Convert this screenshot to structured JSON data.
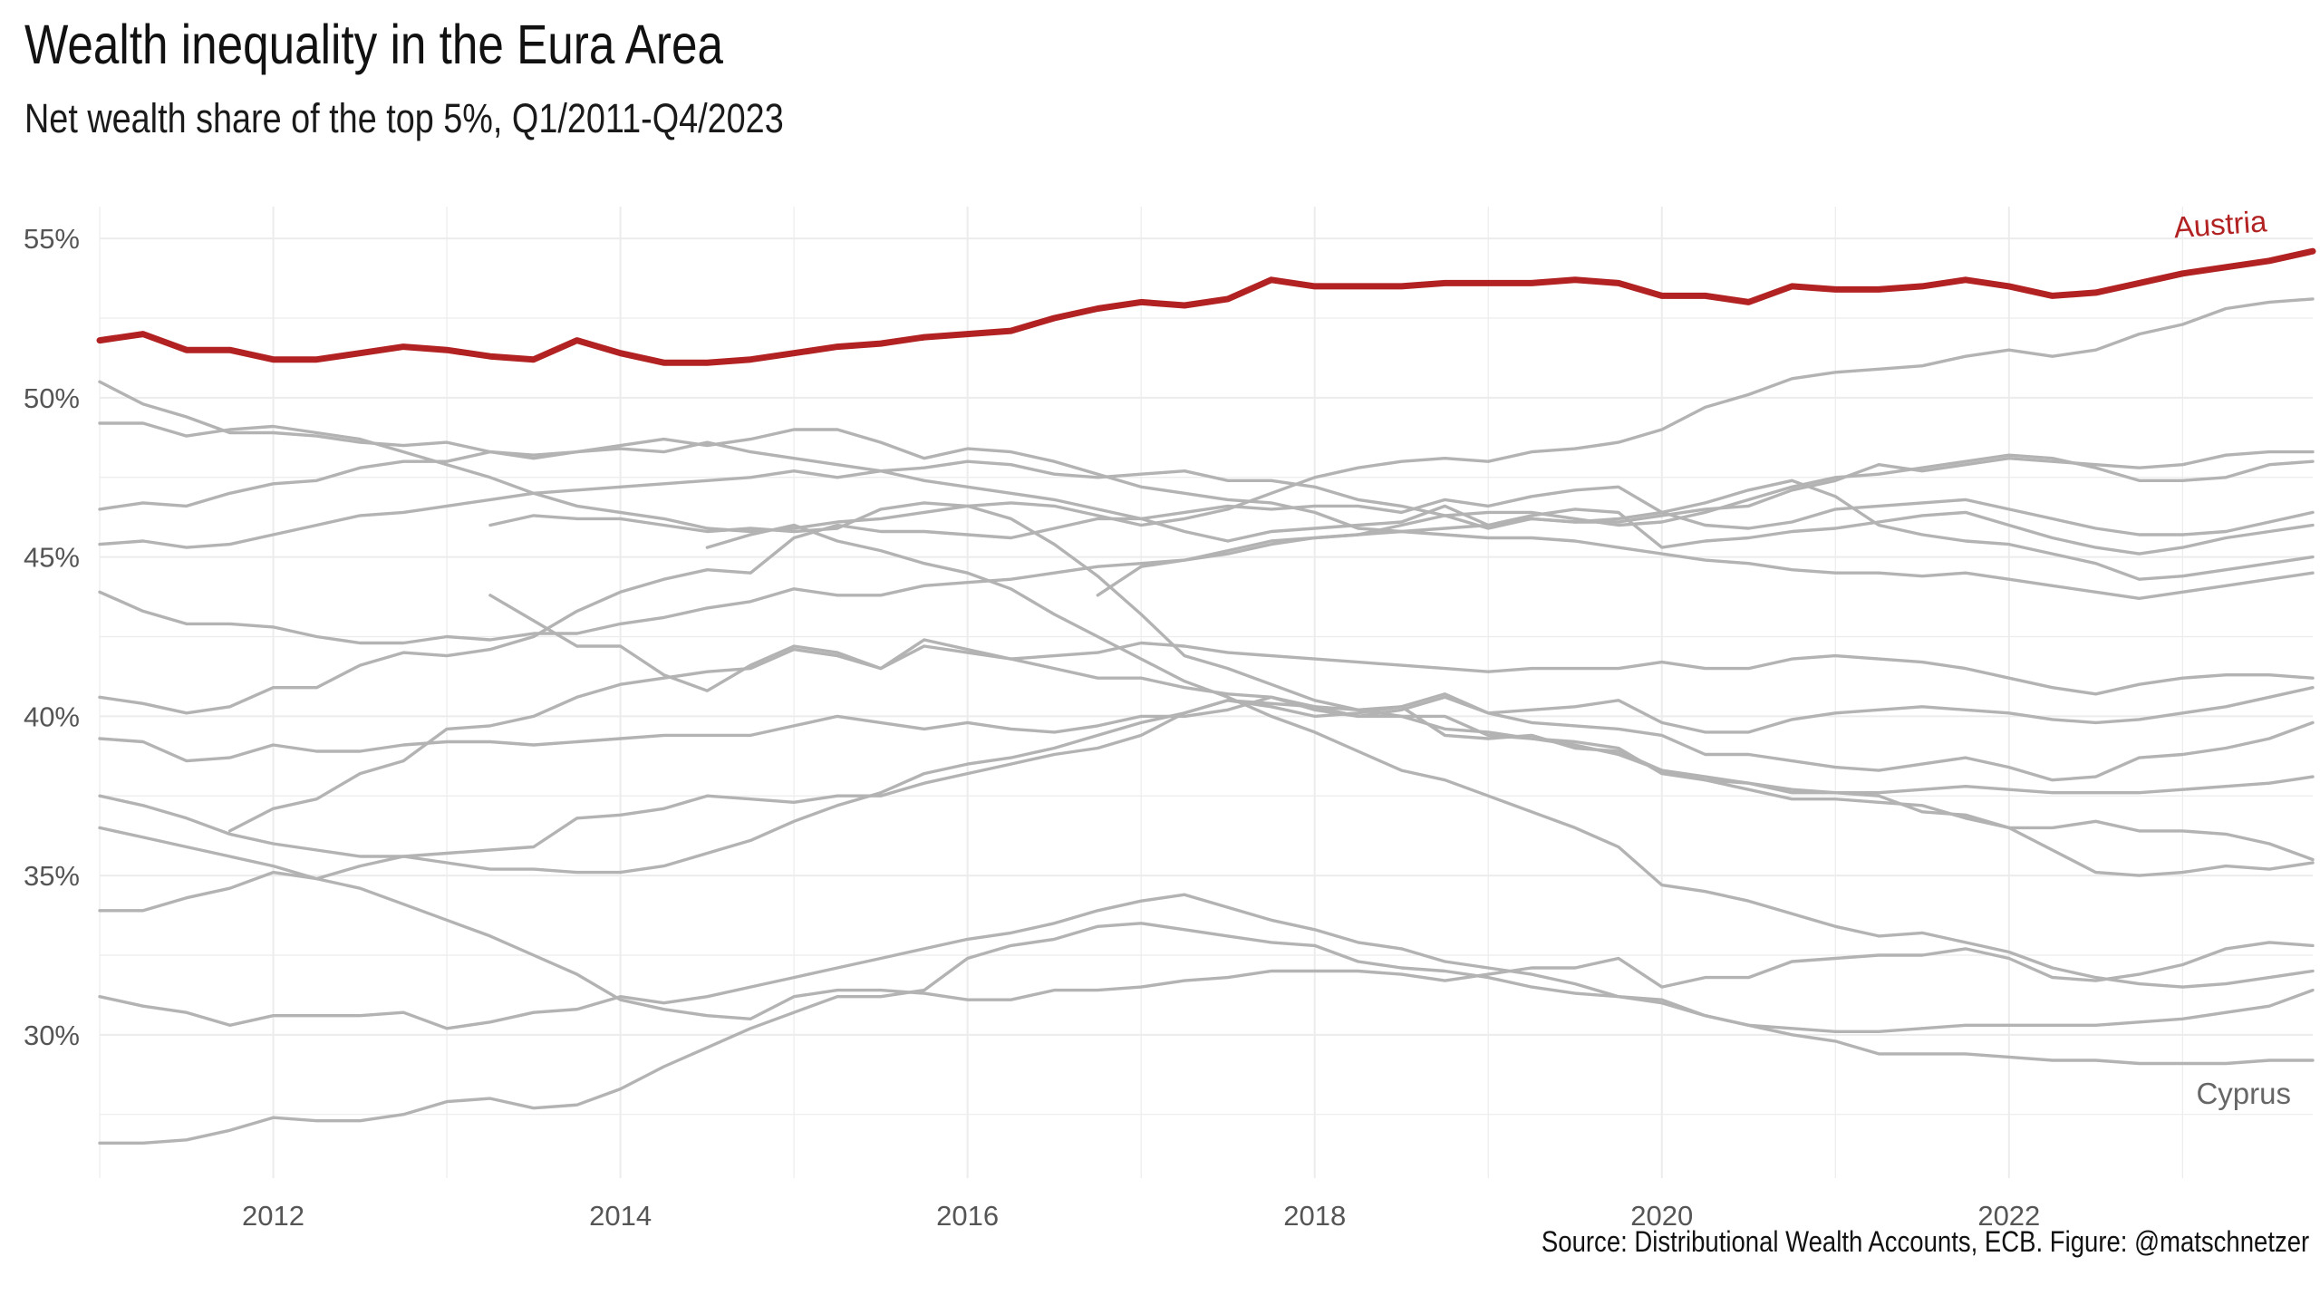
{
  "title": "Wealth inequality in the Eura Area",
  "subtitle": "Net wealth share of the top 5%, Q1/2011-Q4/2023",
  "caption": "Source: Distributional Wealth Accounts, ECB. Figure: @matschnetzer",
  "colors": {
    "highlight": "#b22222",
    "other": "#b3b3b3",
    "grid": "#ececec",
    "label_other": "#666666"
  },
  "chart_data": {
    "type": "line",
    "title": "Wealth inequality in the Eura Area",
    "subtitle": "Net wealth share of the top 5%, Q1/2011-Q4/2023",
    "xlabel": "",
    "ylabel": "",
    "xlim": [
      2011.0,
      2023.75
    ],
    "ylim": [
      25.5,
      56.0
    ],
    "x_ticks": [
      2012,
      2014,
      2016,
      2018,
      2020,
      2022
    ],
    "y_ticks": [
      30,
      35,
      40,
      45,
      50,
      55
    ],
    "y_tick_labels": [
      "30%",
      "35%",
      "40%",
      "45%",
      "50%",
      "55%"
    ],
    "grid": true,
    "legend": "none",
    "labels": {
      "highlight": "Austria",
      "lowest": "Cyprus"
    },
    "series": [
      {
        "name": "Austria",
        "highlight": true,
        "x_start": 2011.0,
        "values": [
          51.8,
          52.0,
          51.5,
          51.5,
          51.2,
          51.2,
          51.4,
          51.6,
          51.5,
          51.3,
          51.2,
          51.8,
          51.4,
          51.1,
          51.1,
          51.2,
          51.4,
          51.6,
          51.7,
          51.9,
          52.0,
          52.1,
          52.5,
          52.8,
          53.0,
          52.9,
          53.1,
          53.7,
          53.5,
          53.5,
          53.5,
          53.6,
          53.6,
          53.6,
          53.7,
          53.6,
          53.2,
          53.2,
          53.0,
          53.5,
          53.4,
          53.4,
          53.5,
          53.7,
          53.5,
          53.2,
          53.3,
          53.6,
          53.9,
          54.1,
          54.3,
          54.6
        ]
      },
      {
        "name": "Cyprus",
        "highlight": false,
        "x_start": 2011.0,
        "values": [
          26.6,
          26.6,
          26.7,
          27.0,
          27.4,
          27.3,
          27.3,
          27.5,
          27.9,
          28.0,
          27.7,
          27.8,
          28.3,
          29.0,
          29.6,
          30.2,
          30.7,
          31.2,
          31.2,
          31.4,
          32.4,
          32.8,
          33.0,
          33.4,
          33.5,
          33.3,
          33.1,
          32.9,
          32.8,
          32.3,
          32.1,
          32.0,
          31.8,
          31.5,
          31.3,
          31.2,
          31.1,
          30.6,
          30.3,
          30.0,
          29.8,
          29.4,
          29.4,
          29.4,
          29.3,
          29.2,
          29.2,
          29.1,
          29.1,
          29.1,
          29.2,
          29.2
        ]
      },
      {
        "name": "",
        "highlight": false,
        "x_start": 2011.0,
        "values": [
          50.5,
          49.8,
          49.4,
          48.9,
          48.9,
          48.8,
          48.6,
          48.5,
          48.6,
          48.3,
          48.1,
          48.3,
          48.5,
          48.7,
          48.5,
          48.7,
          49.0,
          49.0,
          48.6,
          48.1,
          48.4,
          48.3,
          48.0,
          47.6,
          47.2,
          47.0,
          46.8,
          46.7,
          46.4,
          45.9,
          45.8,
          45.7,
          45.6,
          45.6,
          45.5,
          45.3,
          45.1,
          44.9,
          44.8,
          44.6,
          44.5,
          44.5,
          44.4,
          44.5,
          44.3,
          44.1,
          43.9,
          43.7,
          43.9,
          44.1,
          44.3,
          44.5
        ]
      },
      {
        "name": "",
        "highlight": false,
        "x_start": 2011.0,
        "values": [
          49.2,
          49.2,
          48.8,
          49.0,
          49.1,
          48.9,
          48.7,
          48.3,
          47.9,
          47.5,
          47.0,
          46.6,
          46.4,
          46.2,
          45.9,
          45.8,
          45.9,
          46.1,
          46.2,
          46.4,
          46.6,
          46.7,
          46.6,
          46.3,
          46.0,
          46.2,
          46.5,
          47.0,
          47.5,
          47.8,
          48.0,
          48.1,
          48.0,
          48.3,
          48.4,
          48.6,
          49.0,
          49.7,
          50.1,
          50.6,
          50.8,
          50.9,
          51.0,
          51.3,
          51.5,
          51.3,
          51.5,
          52.0,
          52.3,
          52.8,
          53.0,
          53.1
        ]
      },
      {
        "name": "",
        "highlight": false,
        "x_start": 2011.0,
        "values": [
          46.5,
          46.7,
          46.6,
          47.0,
          47.3,
          47.4,
          47.8,
          48.0,
          48.0,
          48.3,
          48.2,
          48.3,
          48.4,
          48.3,
          48.6,
          48.3,
          48.1,
          47.9,
          47.7,
          47.4,
          47.2,
          47.0,
          46.8,
          46.5,
          46.2,
          45.8,
          45.5,
          45.8,
          45.9,
          46.0,
          46.1,
          46.6,
          46.0,
          46.2,
          46.1,
          46.1,
          46.3,
          46.5,
          46.6,
          47.1,
          47.4,
          47.9,
          47.7,
          47.9,
          48.1,
          48.0,
          47.9,
          47.8,
          47.9,
          48.2,
          48.3,
          48.3
        ]
      },
      {
        "name": "",
        "highlight": false,
        "x_start": 2011.0,
        "values": [
          45.4,
          45.5,
          45.3,
          45.4,
          45.7,
          46.0,
          46.3,
          46.4,
          46.6,
          46.8,
          47.0,
          47.1,
          47.2,
          47.3,
          47.4,
          47.5,
          47.7,
          47.5,
          47.7,
          47.8,
          48.0,
          47.9,
          47.6,
          47.5,
          47.6,
          47.7,
          47.4,
          47.4,
          47.2,
          46.8,
          46.6,
          46.3,
          46.4,
          46.4,
          46.2,
          46.0,
          46.1,
          46.4,
          46.8,
          47.2,
          47.5,
          47.6,
          47.8,
          48.0,
          48.2,
          48.1,
          47.8,
          47.4,
          47.4,
          47.5,
          47.9,
          48.0
        ]
      },
      {
        "name": "",
        "highlight": false,
        "x_start": 2011.0,
        "values": [
          43.9,
          43.3,
          42.9,
          42.9,
          42.8,
          42.5,
          42.3,
          42.3,
          42.5,
          42.4,
          42.6,
          42.6,
          42.9,
          43.1,
          43.4,
          43.6,
          44.0,
          43.8,
          43.8,
          44.1,
          44.2,
          44.3,
          44.5,
          44.7,
          44.8,
          44.9,
          45.1,
          45.4,
          45.6,
          45.7,
          45.8,
          45.9,
          46.0,
          46.3,
          46.5,
          46.4,
          45.3,
          45.5,
          45.6,
          45.8,
          45.9,
          46.1,
          46.3,
          46.4,
          46.0,
          45.6,
          45.3,
          45.1,
          45.3,
          45.6,
          45.8,
          46.0
        ]
      },
      {
        "name": "",
        "highlight": false,
        "x_start": 2011.0,
        "values": [
          40.6,
          40.4,
          40.1,
          40.3,
          40.9,
          40.9,
          41.6,
          42.0,
          41.9,
          42.1,
          42.5,
          43.3,
          43.9,
          44.3,
          44.6,
          44.5,
          45.6,
          46.0,
          45.8,
          45.8,
          45.7,
          45.6,
          45.9,
          46.2,
          46.2,
          46.4,
          46.6,
          46.5,
          46.6,
          46.6,
          46.4,
          46.8,
          46.6,
          46.9,
          47.1,
          47.2,
          46.4,
          46.0,
          45.9,
          46.1,
          46.5,
          46.6,
          46.7,
          46.8,
          46.5,
          46.2,
          45.9,
          45.7,
          45.7,
          45.8,
          46.1,
          46.4
        ]
      },
      {
        "name": "",
        "highlight": false,
        "x_start": 2011.0,
        "values": [
          39.3,
          39.2,
          38.6,
          38.7,
          39.1,
          38.9,
          38.9,
          39.1,
          39.2,
          39.2,
          39.1,
          39.2,
          39.3,
          39.4,
          39.4,
          39.4,
          39.7,
          40.0,
          39.8,
          39.6,
          39.8,
          39.6,
          39.5,
          39.7,
          40.0,
          40.0,
          40.2,
          40.6,
          40.3,
          40.0,
          40.2,
          40.6,
          40.1,
          40.2,
          40.3,
          40.5,
          39.8,
          39.5,
          39.5,
          39.9,
          40.1,
          40.2,
          40.3,
          40.2,
          40.1,
          39.9,
          39.8,
          39.9,
          40.1,
          40.3,
          40.6,
          40.9
        ]
      },
      {
        "name": "",
        "highlight": false,
        "x_start": 2011.0,
        "values": [
          37.5,
          37.2,
          36.8,
          36.3,
          36.0,
          35.8,
          35.6,
          35.6,
          35.4,
          35.2,
          35.2,
          35.1,
          35.1,
          35.3,
          35.7,
          36.1,
          36.7,
          37.2,
          37.6,
          38.2,
          38.5,
          38.7,
          39.0,
          39.4,
          39.8,
          40.1,
          40.5,
          40.4,
          40.3,
          40.2,
          40.0,
          39.6,
          39.5,
          39.3,
          39.1,
          38.8,
          38.3,
          38.1,
          37.9,
          37.7,
          37.6,
          37.6,
          37.7,
          37.8,
          37.7,
          37.6,
          37.6,
          37.6,
          37.7,
          37.8,
          37.9,
          38.1
        ]
      },
      {
        "name": "",
        "highlight": false,
        "x_start": 2011.0,
        "values": [
          36.5,
          36.2,
          35.9,
          35.6,
          35.3,
          34.9,
          34.6,
          34.1,
          33.6,
          33.1,
          32.5,
          31.9,
          31.1,
          30.8,
          30.6,
          30.5,
          31.2,
          31.4,
          31.4,
          31.3,
          31.1,
          31.1,
          31.4,
          31.4,
          31.5,
          31.7,
          31.8,
          32.0,
          32.0,
          32.0,
          31.9,
          31.7,
          31.9,
          32.1,
          32.1,
          32.4,
          31.5,
          31.8,
          31.8,
          32.3,
          32.4,
          32.5,
          32.5,
          32.7,
          32.4,
          31.8,
          31.7,
          31.9,
          32.2,
          32.7,
          32.9,
          32.8
        ]
      },
      {
        "name": "",
        "highlight": false,
        "x_start": 2011.0,
        "values": [
          31.2,
          30.9,
          30.7,
          30.3,
          30.6,
          30.6,
          30.6,
          30.7,
          30.2,
          30.4,
          30.7,
          30.8,
          31.2,
          31.0,
          31.2,
          31.5,
          31.8,
          32.1,
          32.4,
          32.7,
          33.0,
          33.2,
          33.5,
          33.9,
          34.2,
          34.4,
          34.0,
          33.6,
          33.3,
          32.9,
          32.7,
          32.3,
          32.1,
          31.9,
          31.6,
          31.2,
          31.0,
          30.6,
          30.3,
          30.2,
          30.1,
          30.1,
          30.2,
          30.3,
          30.3,
          30.3,
          30.3,
          30.4,
          30.5,
          30.7,
          30.9,
          31.4
        ]
      },
      {
        "name": "",
        "highlight": false,
        "x_start": 2011.0,
        "values": [
          33.9,
          33.9,
          34.3,
          34.6,
          35.1,
          34.9,
          35.3,
          35.6,
          35.7,
          35.8,
          35.9,
          36.8,
          36.9,
          37.1,
          37.5,
          37.4,
          37.3,
          37.5,
          37.5,
          37.9,
          38.2,
          38.5,
          38.8,
          39.0,
          39.4,
          40.1,
          40.5,
          40.3,
          40.0,
          40.1,
          40.3,
          40.7,
          40.1,
          39.8,
          39.7,
          39.6,
          39.4,
          38.8,
          38.8,
          38.6,
          38.4,
          38.3,
          38.5,
          38.7,
          38.4,
          38.0,
          38.1,
          38.7,
          38.8,
          39.0,
          39.3,
          39.8
        ]
      },
      {
        "name": "",
        "highlight": false,
        "x_start": 2011.25,
        "values": [
          null,
          null,
          null,
          36.4,
          37.1,
          37.4,
          38.2,
          38.6,
          39.6,
          39.7,
          40.0,
          40.6,
          41.0,
          41.2,
          41.4,
          41.5,
          42.1,
          41.9,
          41.5,
          42.2,
          42.0,
          41.8,
          41.9,
          42.0,
          42.3,
          42.2,
          42.0,
          41.9,
          41.8,
          41.7,
          41.6,
          41.5,
          41.4,
          41.5,
          41.5,
          41.5,
          41.7,
          41.5,
          41.5,
          41.8,
          41.9,
          41.8,
          41.7,
          41.5,
          41.2,
          40.9,
          40.7,
          41.0,
          41.2,
          41.3,
          41.3,
          41.2
        ]
      },
      {
        "name": "",
        "highlight": false,
        "x_start": 2013.25,
        "values": [
          null,
          null,
          null,
          null,
          null,
          null,
          null,
          null,
          null,
          43.8,
          43.0,
          42.2,
          42.2,
          41.3,
          40.8,
          41.6,
          42.2,
          42.0,
          41.5,
          42.4,
          42.1,
          41.8,
          41.5,
          41.2,
          41.2,
          40.9,
          40.7,
          40.6,
          40.2,
          40.0,
          40.0,
          40.0,
          39.4,
          39.3,
          39.2,
          39.0,
          38.2,
          38.0,
          37.9,
          37.6,
          37.6,
          37.5,
          37.0,
          36.9,
          36.5,
          36.5,
          36.7,
          36.4,
          36.4,
          36.3,
          36.0,
          35.5
        ]
      },
      {
        "name": "",
        "highlight": false,
        "x_start": 2013.25,
        "values": [
          null,
          null,
          null,
          null,
          null,
          null,
          null,
          null,
          null,
          46.0,
          46.3,
          46.2,
          46.2,
          46.0,
          45.8,
          45.9,
          45.8,
          45.9,
          46.5,
          46.7,
          46.6,
          46.2,
          45.4,
          44.4,
          43.2,
          41.9,
          41.5,
          41.0,
          40.5,
          40.2,
          40.3,
          39.4,
          39.3,
          39.4,
          39.0,
          38.9,
          38.3,
          38.0,
          37.7,
          37.4,
          37.4,
          37.3,
          37.2,
          36.8,
          36.5,
          35.8,
          35.1,
          35.0,
          35.1,
          35.3,
          35.2,
          35.4
        ]
      },
      {
        "name": "",
        "highlight": false,
        "x_start": 2014.5,
        "values": [
          null,
          null,
          null,
          null,
          null,
          null,
          null,
          null,
          null,
          null,
          null,
          null,
          null,
          null,
          45.3,
          45.7,
          46.0,
          45.5,
          45.2,
          44.8,
          44.5,
          44.0,
          43.2,
          42.5,
          41.8,
          41.1,
          40.6,
          40.0,
          39.5,
          38.9,
          38.3,
          38.0,
          37.5,
          37.0,
          36.5,
          35.9,
          34.7,
          34.5,
          34.2,
          33.8,
          33.4,
          33.1,
          33.2,
          32.9,
          32.6,
          32.1,
          31.8,
          31.6,
          31.5,
          31.6,
          31.8,
          32.0
        ]
      },
      {
        "name": "",
        "highlight": false,
        "x_start": 2016.75,
        "values": [
          null,
          null,
          null,
          null,
          null,
          null,
          null,
          null,
          null,
          null,
          null,
          null,
          null,
          null,
          null,
          null,
          null,
          null,
          null,
          null,
          null,
          null,
          null,
          43.8,
          44.7,
          44.9,
          45.2,
          45.5,
          45.6,
          45.7,
          46.0,
          46.3,
          45.9,
          46.2,
          46.1,
          46.2,
          46.4,
          46.7,
          47.1,
          47.4,
          46.9,
          46.0,
          45.7,
          45.5,
          45.4,
          45.1,
          44.8,
          44.3,
          44.4,
          44.6,
          44.8,
          45.0
        ]
      }
    ]
  }
}
